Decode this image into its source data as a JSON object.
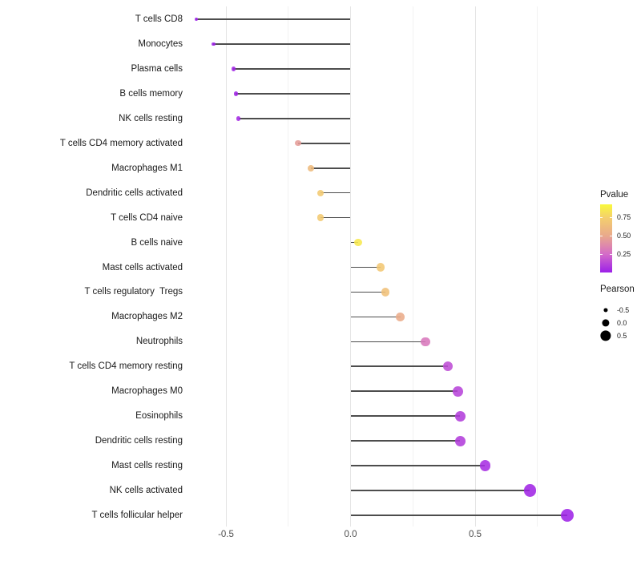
{
  "chart_data": {
    "type": "scatter",
    "subtype": "lollipop",
    "title": "",
    "xlabel": "",
    "ylabel": "",
    "x_tick_labels": [
      "-0.5",
      "0.0",
      "0.5"
    ],
    "x_tick_values": [
      -0.5,
      0.0,
      0.5
    ],
    "x_minor_tick_values": [
      -0.25,
      0.25,
      0.75
    ],
    "xlim": [
      -0.66,
      0.93
    ],
    "grid": "vertical-only",
    "legend_position": "right",
    "categories": [
      "T cells CD8",
      "Monocytes",
      "Plasma cells",
      "B cells memory",
      "NK cells resting",
      "T cells CD4 memory activated",
      "Macrophages M1",
      "Dendritic cells activated",
      "T cells CD4 naive",
      "B cells naive",
      "Mast cells activated",
      "T cells regulatory  Tregs",
      "Macrophages M2",
      "Neutrophils",
      "T cells CD4 memory resting",
      "Macrophages M0",
      "Eosinophils",
      "Dendritic cells resting",
      "Mast cells resting",
      "NK cells activated",
      "T cells follicular helper"
    ],
    "series": [
      {
        "name": "Pearson",
        "values": [
          -0.62,
          -0.55,
          -0.47,
          -0.46,
          -0.45,
          -0.21,
          -0.16,
          -0.12,
          -0.12,
          0.03,
          0.12,
          0.14,
          0.2,
          0.3,
          0.39,
          0.43,
          0.44,
          0.44,
          0.54,
          0.72,
          0.87
        ]
      },
      {
        "name": "Pvalue",
        "values": [
          0.004,
          0.01,
          0.02,
          0.02,
          0.03,
          0.45,
          0.62,
          0.72,
          0.72,
          0.9,
          0.7,
          0.65,
          0.52,
          0.3,
          0.15,
          0.12,
          0.1,
          0.1,
          0.05,
          0.02,
          0.01
        ]
      }
    ],
    "legend": {
      "pvalue": {
        "title": "Pvalue",
        "tick_labels": [
          "0.75",
          "0.50",
          "0.25"
        ],
        "tick_values": [
          0.75,
          0.5,
          0.25
        ],
        "range": [
          0,
          0.93
        ]
      },
      "pearson": {
        "title": "Pearson",
        "tick_labels": [
          "-0.5",
          "0.0",
          "0.5"
        ],
        "tick_values": [
          -0.5,
          0.0,
          0.5
        ]
      }
    },
    "colors": {
      "gradient_stops": [
        {
          "p": 0.0,
          "color": "#9C20E8"
        },
        {
          "p": 0.25,
          "color": "#D46BC8"
        },
        {
          "p": 0.5,
          "color": "#E9A98C"
        },
        {
          "p": 0.75,
          "color": "#F4CF6D"
        },
        {
          "p": 1.0,
          "color": "#F9F93B"
        }
      ],
      "segment": "#4D4D4D",
      "grid_major": "#E4E4E4",
      "grid_minor": "#F2F2F2",
      "axis_text": "#4D4D4D",
      "label_text": "#1A1A1A",
      "legend_dot": "#000000"
    }
  }
}
